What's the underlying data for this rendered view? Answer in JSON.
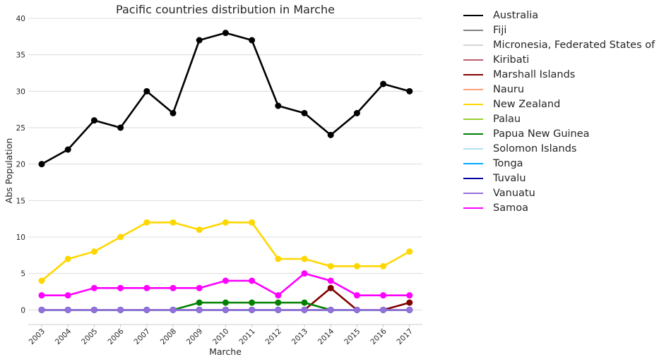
{
  "chart_data": {
    "type": "line",
    "title": "Pacific countries distribution in Marche",
    "xlabel": "Marche",
    "ylabel": "Abs Population",
    "ylim": [
      -2,
      40
    ],
    "yticks": [
      0,
      5,
      10,
      15,
      20,
      25,
      30,
      35,
      40
    ],
    "grid": "horizontal",
    "legend_position": "outside right",
    "categories": [
      "2003",
      "2004",
      "2005",
      "2006",
      "2007",
      "2008",
      "2009",
      "2010",
      "2011",
      "2012",
      "2013",
      "2014",
      "2015",
      "2016",
      "2017"
    ],
    "series": [
      {
        "name": "Australia",
        "color": "#000000",
        "values": [
          20,
          22,
          26,
          25,
          30,
          27,
          37,
          38,
          37,
          28,
          27,
          24,
          27,
          31,
          30
        ]
      },
      {
        "name": "Fiji",
        "color": "#808080",
        "values": [
          0,
          0,
          0,
          0,
          0,
          0,
          0,
          0,
          0,
          0,
          0,
          0,
          0,
          0,
          0
        ]
      },
      {
        "name": "Micronesia, Federated States of",
        "color": "#d3d3d3",
        "values": [
          0,
          0,
          0,
          0,
          0,
          0,
          0,
          0,
          0,
          0,
          0,
          0,
          0,
          0,
          0
        ]
      },
      {
        "name": "Kiribati",
        "color": "#bc5a6a",
        "values": [
          0,
          0,
          0,
          0,
          0,
          0,
          0,
          0,
          0,
          0,
          0,
          0,
          0,
          0,
          0
        ]
      },
      {
        "name": "Marshall Islands",
        "color": "#800000",
        "values": [
          0,
          0,
          0,
          0,
          0,
          0,
          0,
          0,
          0,
          0,
          0,
          3,
          0,
          0,
          1
        ]
      },
      {
        "name": "Nauru",
        "color": "#ffa07a",
        "values": [
          0,
          0,
          0,
          0,
          0,
          0,
          0,
          0,
          0,
          0,
          0,
          0,
          0,
          0,
          0
        ]
      },
      {
        "name": "New Zealand",
        "color": "#ffd700",
        "values": [
          4,
          7,
          8,
          10,
          12,
          12,
          11,
          12,
          12,
          7,
          7,
          6,
          6,
          6,
          8
        ]
      },
      {
        "name": "Palau",
        "color": "#9acd32",
        "values": [
          0,
          0,
          0,
          0,
          0,
          0,
          0,
          0,
          0,
          0,
          0,
          0,
          0,
          0,
          0
        ]
      },
      {
        "name": "Papua New Guinea",
        "color": "#008000",
        "values": [
          0,
          0,
          0,
          0,
          0,
          0,
          1,
          1,
          1,
          1,
          1,
          0,
          0,
          0,
          0
        ]
      },
      {
        "name": "Solomon Islands",
        "color": "#b0e0f0",
        "values": [
          0,
          0,
          0,
          0,
          0,
          0,
          0,
          0,
          0,
          0,
          0,
          0,
          0,
          0,
          0
        ]
      },
      {
        "name": "Tonga",
        "color": "#00a8ff",
        "values": [
          0,
          0,
          0,
          0,
          0,
          0,
          0,
          0,
          0,
          0,
          0,
          0,
          0,
          0,
          0
        ]
      },
      {
        "name": "Tuvalu",
        "color": "#0000a0",
        "values": [
          0,
          0,
          0,
          0,
          0,
          0,
          0,
          0,
          0,
          0,
          0,
          0,
          0,
          0,
          0
        ]
      },
      {
        "name": "Vanuatu",
        "color": "#9370db",
        "values": [
          0,
          0,
          0,
          0,
          0,
          0,
          0,
          0,
          0,
          0,
          0,
          0,
          0,
          0,
          0
        ]
      },
      {
        "name": "Samoa",
        "color": "#ff00ff",
        "values": [
          2,
          2,
          3,
          3,
          3,
          3,
          3,
          4,
          4,
          2,
          5,
          4,
          2,
          2,
          2
        ]
      }
    ]
  }
}
